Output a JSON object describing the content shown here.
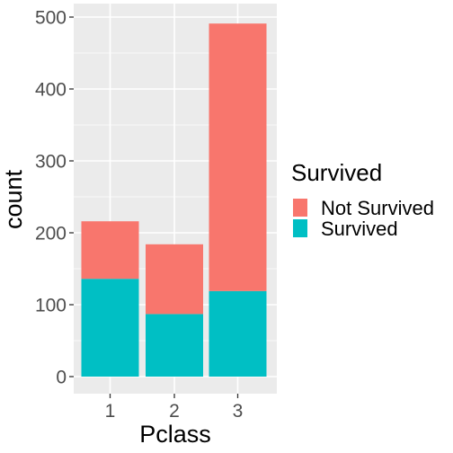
{
  "chart_data": {
    "type": "bar",
    "stacked": true,
    "categories": [
      "1",
      "2",
      "3"
    ],
    "series": [
      {
        "name": "Not Survived",
        "color": "#F8766D",
        "values": [
          80,
          97,
          372
        ]
      },
      {
        "name": "Survived",
        "color": "#00BFC4",
        "values": [
          136,
          87,
          119
        ]
      }
    ],
    "xlabel": "Pclass",
    "ylabel": "count",
    "ylim": [
      0,
      515
    ],
    "yticks": [
      0,
      100,
      200,
      300,
      400,
      500
    ],
    "grid": true,
    "legend": {
      "title": "Survived",
      "position": "right"
    }
  }
}
